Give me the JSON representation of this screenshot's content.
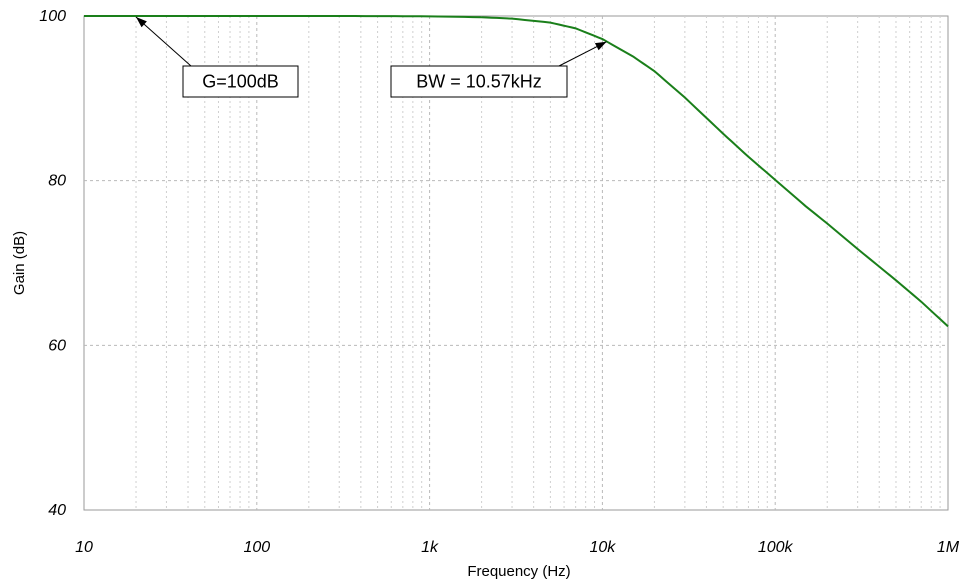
{
  "chart_data": {
    "type": "line",
    "xscale": "log",
    "xlabel": "Frequency (Hz)",
    "ylabel": "Gain (dB)",
    "xlim": [
      10,
      1000000
    ],
    "ylim": [
      40,
      100
    ],
    "grid": true,
    "x_ticks": [
      {
        "value": 10,
        "label": "10"
      },
      {
        "value": 100,
        "label": "100"
      },
      {
        "value": 1000,
        "label": "1k"
      },
      {
        "value": 10000,
        "label": "10k"
      },
      {
        "value": 100000,
        "label": "100k"
      },
      {
        "value": 1000000,
        "label": "1M"
      }
    ],
    "y_ticks": [
      {
        "value": 40,
        "label": "40"
      },
      {
        "value": 60,
        "label": "60"
      },
      {
        "value": 80,
        "label": "80"
      },
      {
        "value": 100,
        "label": "100"
      }
    ],
    "series": [
      {
        "color": "#1a7f1a",
        "x": [
          10,
          20,
          50,
          100,
          200,
          500,
          1000,
          2000,
          3000,
          5000,
          7000,
          10000,
          15000,
          20000,
          30000,
          50000,
          70000,
          100000,
          150000,
          200000,
          300000,
          500000,
          700000,
          1000000
        ],
        "y": [
          100,
          100,
          100,
          100,
          100,
          99.99,
          99.96,
          99.85,
          99.68,
          99.2,
          98.5,
          97.2,
          95.1,
          93.3,
          90.1,
          85.7,
          82.9,
          80.1,
          76.9,
          74.8,
          71.7,
          67.9,
          65.3,
          62.3
        ]
      }
    ],
    "annotations": [
      {
        "text": "G=100dB",
        "x": 20,
        "y": 100
      },
      {
        "text": "BW = 10.57kHz",
        "x": 10570,
        "y": 97
      }
    ]
  }
}
